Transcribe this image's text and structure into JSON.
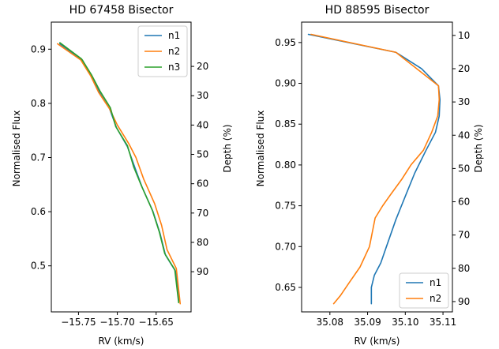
{
  "chart_data": [
    {
      "type": "line",
      "title": "HD 67458 Bisector",
      "xlabel": "RV (km/s)",
      "ylabel": "Normalised Flux",
      "ylabel_right": "Depth (%)",
      "xlim": [
        -15.785,
        -15.605
      ],
      "ylim": [
        0.415,
        0.95
      ],
      "ylim_right": [
        103.7,
        4.9
      ],
      "xticks": [
        -15.75,
        -15.7,
        -15.65
      ],
      "xtick_labels": [
        "−15.75",
        "−15.70",
        "−15.65"
      ],
      "yticks": [
        0.5,
        0.6,
        0.7,
        0.8,
        0.9
      ],
      "ytick_labels": [
        "0.5",
        "0.6",
        "0.7",
        "0.8",
        "0.9"
      ],
      "yticks_right": [
        20,
        30,
        40,
        50,
        60,
        70,
        80,
        90
      ],
      "ytick_labels_right": [
        "20",
        "30",
        "40",
        "50",
        "60",
        "70",
        "80",
        "90"
      ],
      "legend_position": "top-right",
      "grid": false,
      "series": [
        {
          "name": "n1",
          "color": "#1f77b4",
          "x": [
            -15.774,
            -15.745,
            -15.733,
            -15.723,
            -15.71,
            -15.701,
            -15.687,
            -15.677,
            -15.668,
            -15.654,
            -15.645,
            -15.638,
            -15.625,
            -15.62
          ],
          "y": [
            0.91,
            0.88,
            0.85,
            0.82,
            0.79,
            0.755,
            0.72,
            0.68,
            0.645,
            0.6,
            0.56,
            0.52,
            0.49,
            0.435
          ]
        },
        {
          "name": "n2",
          "color": "#ff7f0e",
          "x": [
            -15.777,
            -15.747,
            -15.734,
            -15.724,
            -15.71,
            -15.7,
            -15.685,
            -15.676,
            -15.666,
            -15.652,
            -15.643,
            -15.636,
            -15.624,
            -15.619
          ],
          "y": [
            0.91,
            0.88,
            0.85,
            0.82,
            0.79,
            0.76,
            0.725,
            0.7,
            0.66,
            0.615,
            0.575,
            0.53,
            0.495,
            0.43
          ]
        },
        {
          "name": "n3",
          "color": "#2ca02c",
          "x": [
            -15.774,
            -15.746,
            -15.733,
            -15.722,
            -15.709,
            -15.702,
            -15.687,
            -15.679,
            -15.669,
            -15.655,
            -15.646,
            -15.639,
            -15.626,
            -15.621
          ],
          "y": [
            0.912,
            0.882,
            0.852,
            0.822,
            0.792,
            0.757,
            0.722,
            0.683,
            0.648,
            0.603,
            0.563,
            0.523,
            0.493,
            0.432
          ]
        }
      ]
    },
    {
      "type": "line",
      "title": "HD 88595 Bisector",
      "xlabel": "RV (km/s)",
      "ylabel": "Normalised Flux",
      "ylabel_right": "Depth (%)",
      "xlim": [
        35.0725,
        35.1125
      ],
      "ylim": [
        0.62,
        0.975
      ],
      "ylim_right": [
        93.1,
        6.0
      ],
      "xticks": [
        35.08,
        35.09,
        35.1,
        35.11
      ],
      "xtick_labels": [
        "35.08",
        "35.09",
        "35.10",
        "35.11"
      ],
      "yticks": [
        0.65,
        0.7,
        0.75,
        0.8,
        0.85,
        0.9,
        0.95
      ],
      "ytick_labels": [
        "0.65",
        "0.70",
        "0.75",
        "0.80",
        "0.85",
        "0.90",
        "0.95"
      ],
      "yticks_right": [
        10,
        20,
        30,
        40,
        50,
        60,
        70,
        80,
        90
      ],
      "ytick_labels_right": [
        "10",
        "20",
        "30",
        "40",
        "50",
        "60",
        "70",
        "80",
        "90"
      ],
      "legend_position": "lower-right",
      "grid": false,
      "series": [
        {
          "name": "n1",
          "color": "#1f77b4",
          "x": [
            35.0743,
            35.0975,
            35.1043,
            35.1088,
            35.1092,
            35.109,
            35.108,
            35.1055,
            35.1025,
            35.1003,
            35.0975,
            35.095,
            35.0935,
            35.0918,
            35.091,
            35.091
          ],
          "y": [
            0.96,
            0.938,
            0.918,
            0.897,
            0.88,
            0.86,
            0.84,
            0.818,
            0.79,
            0.765,
            0.733,
            0.7,
            0.68,
            0.665,
            0.65,
            0.63
          ]
        },
        {
          "name": "n2",
          "color": "#ff7f0e",
          "x": [
            35.075,
            35.0975,
            35.103,
            35.1088,
            35.109,
            35.1086,
            35.107,
            35.1048,
            35.1015,
            35.099,
            35.0963,
            35.094,
            35.092,
            35.0905,
            35.088,
            35.085,
            35.0828,
            35.081
          ],
          "y": [
            0.96,
            0.938,
            0.918,
            0.897,
            0.88,
            0.86,
            0.84,
            0.818,
            0.8,
            0.782,
            0.765,
            0.75,
            0.735,
            0.7,
            0.675,
            0.655,
            0.64,
            0.63
          ]
        }
      ]
    }
  ]
}
